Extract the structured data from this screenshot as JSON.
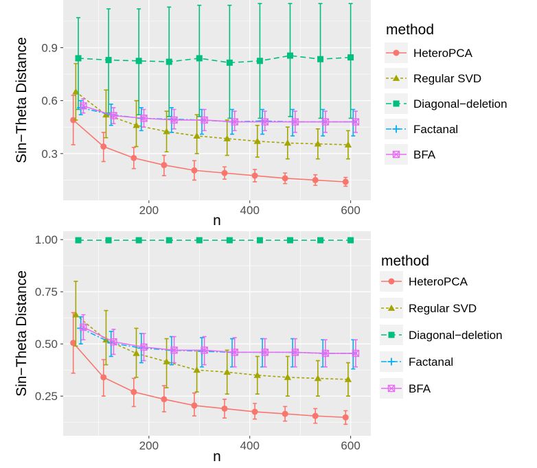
{
  "chart_data": [
    {
      "type": "line",
      "xlabel": "n",
      "ylabel": "Sin−Theta Distance",
      "xlim": [
        30,
        640
      ],
      "ylim": [
        0.035,
        1.17
      ],
      "xticks": [
        200,
        400,
        600
      ],
      "xtick_labels": [
        "200",
        "400",
        "600"
      ],
      "yticks": [
        0.3,
        0.6,
        0.9
      ],
      "ytick_labels": [
        "0.3",
        "0.6",
        "0.9"
      ],
      "x": [
        60,
        120,
        180,
        240,
        300,
        360,
        420,
        480,
        540,
        600
      ],
      "grid": true,
      "legend": {
        "title": "method",
        "placement": "right"
      },
      "series": [
        {
          "name": "HeteroPCA",
          "color": "#F8766D",
          "marker": "circle",
          "dash": "solid",
          "values": [
            0.49,
            0.34,
            0.275,
            0.235,
            0.205,
            0.19,
            0.175,
            0.16,
            0.15,
            0.14
          ],
          "lower": [
            0.35,
            0.255,
            0.215,
            0.175,
            0.15,
            0.155,
            0.14,
            0.13,
            0.12,
            0.115
          ],
          "upper": [
            0.63,
            0.42,
            0.335,
            0.29,
            0.26,
            0.225,
            0.21,
            0.19,
            0.18,
            0.165
          ]
        },
        {
          "name": "Regular SVD",
          "color": "#A3A500",
          "marker": "triangle",
          "dash": "4,3",
          "values": [
            0.65,
            0.52,
            0.46,
            0.425,
            0.4,
            0.385,
            0.37,
            0.36,
            0.355,
            0.35
          ],
          "lower": [
            0.49,
            0.39,
            0.34,
            0.31,
            0.3,
            0.29,
            0.28,
            0.27,
            0.27,
            0.27
          ],
          "upper": [
            0.81,
            0.66,
            0.6,
            0.54,
            0.52,
            0.49,
            0.46,
            0.45,
            0.44,
            0.43
          ]
        },
        {
          "name": "Diagonal−deletion",
          "color": "#00BF7D",
          "marker": "square",
          "dash": "8,5",
          "values": [
            0.84,
            0.83,
            0.825,
            0.82,
            0.84,
            0.815,
            0.825,
            0.855,
            0.835,
            0.845
          ],
          "lower": [
            0.55,
            0.53,
            0.52,
            0.51,
            0.51,
            0.5,
            0.5,
            0.51,
            0.5,
            0.5
          ],
          "upper": [
            1.07,
            1.12,
            1.12,
            1.13,
            1.14,
            1.14,
            1.15,
            1.15,
            1.15,
            1.15
          ]
        },
        {
          "name": "Factanal",
          "color": "#00B0F6",
          "marker": "plus",
          "dash": "8,3,2,3",
          "values": [
            0.56,
            0.52,
            0.5,
            0.495,
            0.49,
            0.48,
            0.485,
            0.48,
            0.48,
            0.48
          ],
          "lower": [
            0.52,
            0.46,
            0.43,
            0.42,
            0.41,
            0.41,
            0.41,
            0.4,
            0.4,
            0.4
          ],
          "upper": [
            0.6,
            0.58,
            0.56,
            0.56,
            0.55,
            0.55,
            0.55,
            0.55,
            0.55,
            0.55
          ]
        },
        {
          "name": "BFA",
          "color": "#E76BF3",
          "marker": "boxx",
          "dash": "solid",
          "values": [
            0.57,
            0.515,
            0.5,
            0.49,
            0.49,
            0.48,
            0.48,
            0.48,
            0.48,
            0.48
          ],
          "lower": [
            0.53,
            0.47,
            0.45,
            0.44,
            0.43,
            0.43,
            0.43,
            0.42,
            0.42,
            0.42
          ],
          "upper": [
            0.61,
            0.56,
            0.55,
            0.55,
            0.55,
            0.54,
            0.54,
            0.54,
            0.54,
            0.54
          ]
        }
      ]
    },
    {
      "type": "line",
      "xlabel": "n",
      "ylabel": "Sin−Theta Distance",
      "xlim": [
        30,
        640
      ],
      "ylim": [
        0.06,
        1.04
      ],
      "xticks": [
        200,
        400,
        600
      ],
      "xtick_labels": [
        "200",
        "400",
        "600"
      ],
      "yticks": [
        0.25,
        0.5,
        0.75,
        1.0
      ],
      "ytick_labels": [
        "0.25",
        "0.50",
        "0.75",
        "1.00"
      ],
      "x": [
        60,
        120,
        180,
        240,
        300,
        360,
        420,
        480,
        540,
        600
      ],
      "grid": true,
      "legend": {
        "title": "method",
        "placement": "right"
      },
      "series": [
        {
          "name": "HeteroPCA",
          "color": "#F8766D",
          "marker": "circle",
          "dash": "solid",
          "values": [
            0.505,
            0.34,
            0.27,
            0.235,
            0.205,
            0.19,
            0.175,
            0.165,
            0.155,
            0.148
          ],
          "lower": [
            0.36,
            0.25,
            0.2,
            0.175,
            0.155,
            0.145,
            0.14,
            0.13,
            0.12,
            0.115
          ],
          "upper": [
            0.65,
            0.425,
            0.335,
            0.3,
            0.265,
            0.235,
            0.215,
            0.2,
            0.19,
            0.18
          ]
        },
        {
          "name": "Regular SVD",
          "color": "#A3A500",
          "marker": "triangle",
          "dash": "4,3",
          "values": [
            0.64,
            0.52,
            0.455,
            0.415,
            0.375,
            0.365,
            0.35,
            0.34,
            0.335,
            0.33
          ],
          "lower": [
            0.49,
            0.4,
            0.34,
            0.29,
            0.27,
            0.26,
            0.26,
            0.25,
            0.25,
            0.25
          ],
          "upper": [
            0.8,
            0.66,
            0.575,
            0.525,
            0.47,
            0.47,
            0.44,
            0.44,
            0.42,
            0.41
          ]
        },
        {
          "name": "Diagonal−deletion",
          "color": "#00BF7D",
          "marker": "square",
          "dash": "8,5",
          "values": [
            0.997,
            0.997,
            0.997,
            0.997,
            0.997,
            0.997,
            0.997,
            0.997,
            0.997,
            0.997
          ],
          "lower": [
            0.993,
            0.993,
            0.993,
            0.993,
            0.993,
            0.993,
            0.993,
            0.993,
            0.993,
            0.993
          ],
          "upper": [
            1.0,
            1.0,
            1.0,
            1.0,
            1.0,
            1.0,
            1.0,
            1.0,
            1.0,
            1.0
          ]
        },
        {
          "name": "Factanal",
          "color": "#00B0F6",
          "marker": "plus",
          "dash": "8,3,2,3",
          "values": [
            0.575,
            0.505,
            0.48,
            0.47,
            0.465,
            0.46,
            0.46,
            0.46,
            0.455,
            0.455
          ],
          "lower": [
            0.5,
            0.44,
            0.41,
            0.4,
            0.39,
            0.39,
            0.39,
            0.39,
            0.39,
            0.38
          ],
          "upper": [
            0.63,
            0.56,
            0.55,
            0.535,
            0.53,
            0.525,
            0.525,
            0.525,
            0.52,
            0.52
          ]
        },
        {
          "name": "BFA",
          "color": "#E76BF3",
          "marker": "boxx",
          "dash": "solid",
          "values": [
            0.58,
            0.51,
            0.485,
            0.47,
            0.47,
            0.46,
            0.46,
            0.46,
            0.455,
            0.455
          ],
          "lower": [
            0.52,
            0.45,
            0.42,
            0.41,
            0.4,
            0.39,
            0.39,
            0.39,
            0.39,
            0.39
          ],
          "upper": [
            0.64,
            0.57,
            0.55,
            0.535,
            0.535,
            0.53,
            0.525,
            0.525,
            0.52,
            0.52
          ]
        }
      ]
    }
  ]
}
